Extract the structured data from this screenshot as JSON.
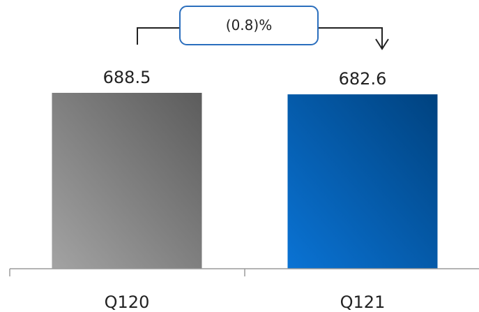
{
  "chart_data": {
    "type": "bar",
    "categories": [
      "Q120",
      "Q121"
    ],
    "values": [
      688.5,
      682.6
    ],
    "value_labels": [
      "688.5",
      "682.6"
    ],
    "title": "",
    "xlabel": "",
    "ylabel": "",
    "ylim": [
      0,
      700
    ],
    "grid": false,
    "legend": "none",
    "bar_colors": [
      {
        "light": "#a3a3a3",
        "dark": "#5c5c5c"
      },
      {
        "light": "#0a73d4",
        "dark": "#00427f"
      }
    ],
    "change_annotation": {
      "text": "(0.8)%",
      "border_color": "#2a6ebd"
    }
  }
}
